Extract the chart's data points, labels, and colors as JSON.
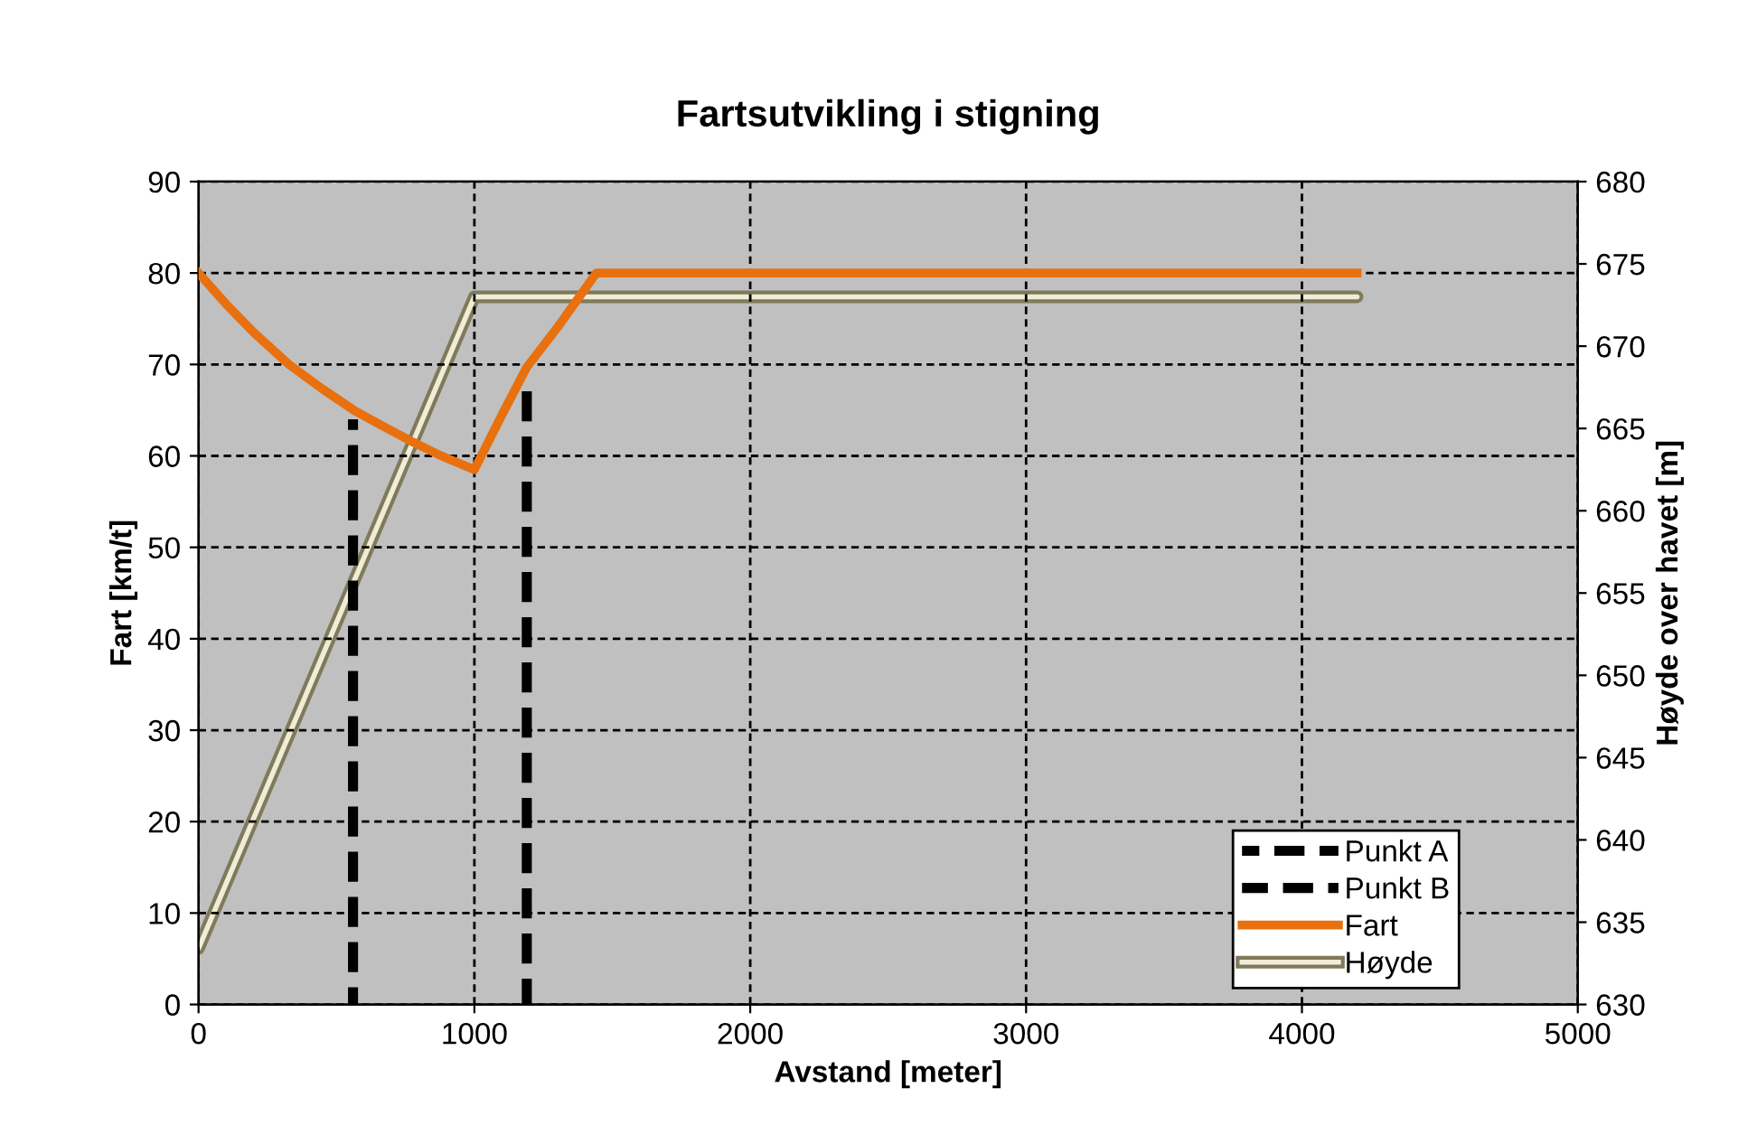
{
  "chart_data": {
    "type": "line",
    "title": "Fartsutvikling i stigning",
    "xlabel": "Avstand [meter]",
    "ylabel": "Fart [km/t]",
    "y2label": "Høyde over havet [m]",
    "xlim": [
      0,
      5000
    ],
    "xticks": [
      0,
      1000,
      2000,
      3000,
      4000,
      5000
    ],
    "ylim": [
      0,
      90
    ],
    "yticks": [
      0,
      10,
      20,
      30,
      40,
      50,
      60,
      70,
      80,
      90
    ],
    "y2lim": [
      630,
      680
    ],
    "y2ticks": [
      630,
      635,
      640,
      645,
      650,
      655,
      660,
      665,
      670,
      675,
      680
    ],
    "grid": true,
    "legend": "bottom right",
    "series": [
      {
        "name": "Punkt A",
        "color": "#000000",
        "line_style": "dashed",
        "x": [
          560,
          560
        ],
        "values": [
          0,
          64
        ]
      },
      {
        "name": "Punkt B",
        "color": "#000000",
        "line_style": "dashed",
        "x": [
          1190,
          1190
        ],
        "values": [
          0,
          68
        ]
      },
      {
        "name": "Fart",
        "color": "#e8700f",
        "line_style": "solid",
        "x": [
          0,
          100,
          200,
          328,
          450,
          563,
          665,
          765,
          880,
          1000,
          1100,
          1190,
          1300,
          1442,
          4200
        ],
        "values": [
          80,
          76.6,
          73.5,
          70,
          67.3,
          65,
          63.3,
          61.7,
          60,
          58.5,
          64.5,
          69.7,
          74,
          80,
          80
        ]
      },
      {
        "name": "Høyde",
        "color": "#7f7a5a",
        "line_style": "solid",
        "axis": "y2",
        "x": [
          0,
          1000,
          4200
        ],
        "values": [
          633.4,
          673,
          673
        ]
      }
    ]
  }
}
